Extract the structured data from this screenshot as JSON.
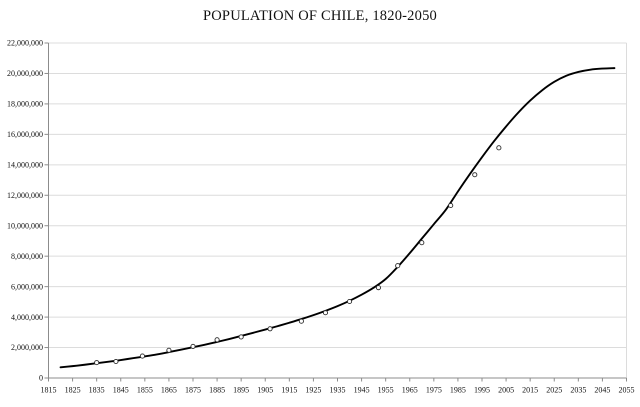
{
  "chart_data": {
    "type": "line",
    "title": "POPULATION OF CHILE, 1820-2050",
    "xlabel": "",
    "ylabel": "",
    "xlim": [
      1815,
      2055
    ],
    "ylim": [
      0,
      22000000
    ],
    "grid": "horizontal-only",
    "legend": "none",
    "background": "#ffffff",
    "axis_color": "#8c8c8c",
    "gridline_color": "#dcdcdc",
    "label_color": "#141414",
    "x_ticks": {
      "values": [
        1815,
        1825,
        1835,
        1845,
        1855,
        1865,
        1875,
        1885,
        1895,
        1905,
        1915,
        1925,
        1935,
        1945,
        1955,
        1965,
        1975,
        1985,
        1995,
        2005,
        2015,
        2025,
        2035,
        2045,
        2055
      ],
      "labels": [
        "1815",
        "1825",
        "1835",
        "1845",
        "1855",
        "1865",
        "1875",
        "1885",
        "1895",
        "1905",
        "1915",
        "1925",
        "1935",
        "1945",
        "1955",
        "1965",
        "1975",
        "1985",
        "1995",
        "2005",
        "2015",
        "2025",
        "2035",
        "2045",
        "2055"
      ]
    },
    "y_ticks": {
      "values": [
        0,
        2000000,
        4000000,
        6000000,
        8000000,
        10000000,
        12000000,
        14000000,
        16000000,
        18000000,
        20000000,
        22000000
      ],
      "labels": [
        "0",
        "2,000,000",
        "4,000,000",
        "6,000,000",
        "8,000,000",
        "10,000,000",
        "12,000,000",
        "14,000,000",
        "16,000,000",
        "18,000,000",
        "20,000,000",
        "22,000,000"
      ]
    },
    "series": [
      {
        "name": "population-model-curve",
        "type": "line",
        "color": "#000000",
        "stroke_width": 1.9,
        "x": [
          1820,
          1825,
          1830,
          1835,
          1840,
          1845,
          1850,
          1855,
          1860,
          1865,
          1870,
          1875,
          1880,
          1885,
          1890,
          1895,
          1900,
          1905,
          1910,
          1915,
          1920,
          1925,
          1930,
          1935,
          1940,
          1945,
          1950,
          1955,
          1960,
          1965,
          1970,
          1975,
          1980,
          1985,
          1990,
          1995,
          2000,
          2005,
          2010,
          2015,
          2020,
          2025,
          2030,
          2035,
          2040,
          2045,
          2050
        ],
        "y": [
          700000,
          780000,
          870000,
          970000,
          1070000,
          1180000,
          1300000,
          1420000,
          1550000,
          1700000,
          1860000,
          2020000,
          2190000,
          2370000,
          2560000,
          2760000,
          2970000,
          3180000,
          3400000,
          3630000,
          3870000,
          4130000,
          4410000,
          4720000,
          5070000,
          5470000,
          5930000,
          6500000,
          7300000,
          8200000,
          9150000,
          10100000,
          11050000,
          12250000,
          13400000,
          14500000,
          15550000,
          16520000,
          17420000,
          18220000,
          18900000,
          19450000,
          19850000,
          20100000,
          20250000,
          20320000,
          20350000
        ]
      },
      {
        "name": "census-observations",
        "type": "scatter",
        "marker": "open-circle",
        "marker_fill": "#ffffff",
        "marker_stroke": "#2b2b2b",
        "marker_radius": 2.1,
        "x": [
          1835,
          1843,
          1854,
          1865,
          1875,
          1885,
          1895,
          1907,
          1920,
          1930,
          1940,
          1952,
          1960,
          1970,
          1982,
          1992,
          2002
        ],
        "y": [
          1010332,
          1083801,
          1439120,
          1819223,
          2075971,
          2507005,
          2695625,
          3231022,
          3730235,
          4287445,
          5023539,
          5932995,
          7374115,
          8884768,
          11329736,
          13348401,
          15116435
        ]
      }
    ]
  }
}
